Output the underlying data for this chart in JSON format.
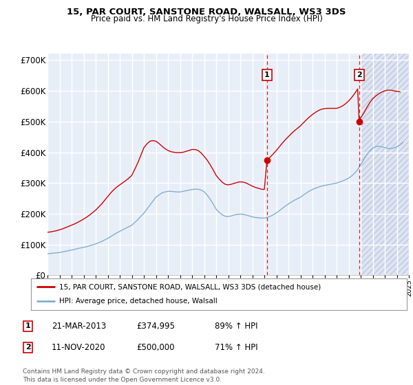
{
  "title": "15, PAR COURT, SANSTONE ROAD, WALSALL, WS3 3DS",
  "subtitle": "Price paid vs. HM Land Registry's House Price Index (HPI)",
  "ylim": [
    0,
    720000
  ],
  "yticks": [
    0,
    100000,
    200000,
    300000,
    400000,
    500000,
    600000,
    700000
  ],
  "ytick_labels": [
    "£0",
    "£100K",
    "£200K",
    "£300K",
    "£400K",
    "£500K",
    "£600K",
    "£700K"
  ],
  "background_color": "#ffffff",
  "plot_bg_color": "#e8eef8",
  "hatch_bg_color": "#dde5f5",
  "grid_color": "#ffffff",
  "red_color": "#cc0000",
  "blue_color": "#7fafd4",
  "purchase1_x": 2013.22,
  "purchase1_y": 374995,
  "purchase2_x": 2020.87,
  "purchase2_y": 500000,
  "legend_line1": "15, PAR COURT, SANSTONE ROAD, WALSALL, WS3 3DS (detached house)",
  "legend_line2": "HPI: Average price, detached house, Walsall",
  "table_row1": [
    "1",
    "21-MAR-2013",
    "£374,995",
    "89% ↑ HPI"
  ],
  "table_row2": [
    "2",
    "11-NOV-2020",
    "£500,000",
    "71% ↑ HPI"
  ],
  "footer": "Contains HM Land Registry data © Crown copyright and database right 2024.\nThis data is licensed under the Open Government Licence v3.0.",
  "hpi_x": [
    1995.0,
    1995.25,
    1995.5,
    1995.75,
    1996.0,
    1996.25,
    1996.5,
    1996.75,
    1997.0,
    1997.25,
    1997.5,
    1997.75,
    1998.0,
    1998.25,
    1998.5,
    1998.75,
    1999.0,
    1999.25,
    1999.5,
    1999.75,
    2000.0,
    2000.25,
    2000.5,
    2000.75,
    2001.0,
    2001.25,
    2001.5,
    2001.75,
    2002.0,
    2002.25,
    2002.5,
    2002.75,
    2003.0,
    2003.25,
    2003.5,
    2003.75,
    2004.0,
    2004.25,
    2004.5,
    2004.75,
    2005.0,
    2005.25,
    2005.5,
    2005.75,
    2006.0,
    2006.25,
    2006.5,
    2006.75,
    2007.0,
    2007.25,
    2007.5,
    2007.75,
    2008.0,
    2008.25,
    2008.5,
    2008.75,
    2009.0,
    2009.25,
    2009.5,
    2009.75,
    2010.0,
    2010.25,
    2010.5,
    2010.75,
    2011.0,
    2011.25,
    2011.5,
    2011.75,
    2012.0,
    2012.25,
    2012.5,
    2012.75,
    2013.0,
    2013.25,
    2013.5,
    2013.75,
    2014.0,
    2014.25,
    2014.5,
    2014.75,
    2015.0,
    2015.25,
    2015.5,
    2015.75,
    2016.0,
    2016.25,
    2016.5,
    2016.75,
    2017.0,
    2017.25,
    2017.5,
    2017.75,
    2018.0,
    2018.25,
    2018.5,
    2018.75,
    2019.0,
    2019.25,
    2019.5,
    2019.75,
    2020.0,
    2020.25,
    2020.5,
    2020.75,
    2021.0,
    2021.25,
    2021.5,
    2021.75,
    2022.0,
    2022.25,
    2022.5,
    2022.75,
    2023.0,
    2023.25,
    2023.5,
    2023.75,
    2024.0,
    2024.25,
    2024.5
  ],
  "hpi_y": [
    70000,
    71000,
    72000,
    73000,
    74000,
    76000,
    78000,
    80000,
    82000,
    84000,
    87000,
    89000,
    91000,
    93000,
    96000,
    99000,
    102000,
    106000,
    110000,
    115000,
    120000,
    126000,
    132000,
    138000,
    143000,
    148000,
    153000,
    158000,
    163000,
    172000,
    181000,
    192000,
    202000,
    215000,
    228000,
    241000,
    254000,
    261000,
    268000,
    271000,
    273000,
    273000,
    272000,
    271000,
    271000,
    273000,
    275000,
    277000,
    279000,
    280000,
    280000,
    277000,
    272000,
    261000,
    248000,
    232000,
    215000,
    205000,
    197000,
    192000,
    191000,
    193000,
    196000,
    198000,
    199000,
    198000,
    196000,
    193000,
    190000,
    188000,
    187000,
    186000,
    186000,
    188000,
    192000,
    197000,
    203000,
    210000,
    218000,
    225000,
    232000,
    238000,
    244000,
    249000,
    254000,
    261000,
    268000,
    274000,
    279000,
    283000,
    287000,
    290000,
    292000,
    294000,
    296000,
    298000,
    300000,
    303000,
    307000,
    311000,
    316000,
    323000,
    332000,
    344000,
    360000,
    376000,
    392000,
    405000,
    414000,
    418000,
    420000,
    418000,
    415000,
    413000,
    412000,
    414000,
    418000,
    424000,
    432000
  ],
  "red_x": [
    1995.0,
    1995.25,
    1995.5,
    1995.75,
    1996.0,
    1996.25,
    1996.5,
    1996.75,
    1997.0,
    1997.25,
    1997.5,
    1997.75,
    1998.0,
    1998.25,
    1998.5,
    1998.75,
    1999.0,
    1999.25,
    1999.5,
    1999.75,
    2000.0,
    2000.25,
    2000.5,
    2000.75,
    2001.0,
    2001.25,
    2001.5,
    2001.75,
    2002.0,
    2002.25,
    2002.5,
    2002.75,
    2003.0,
    2003.25,
    2003.5,
    2003.75,
    2004.0,
    2004.25,
    2004.5,
    2004.75,
    2005.0,
    2005.25,
    2005.5,
    2005.75,
    2006.0,
    2006.25,
    2006.5,
    2006.75,
    2007.0,
    2007.25,
    2007.5,
    2007.75,
    2008.0,
    2008.25,
    2008.5,
    2008.75,
    2009.0,
    2009.25,
    2009.5,
    2009.75,
    2010.0,
    2010.25,
    2010.5,
    2010.75,
    2011.0,
    2011.25,
    2011.5,
    2011.75,
    2012.0,
    2012.25,
    2012.5,
    2012.75,
    2013.0,
    2013.22,
    2013.5,
    2013.75,
    2014.0,
    2014.25,
    2014.5,
    2014.75,
    2015.0,
    2015.25,
    2015.5,
    2015.75,
    2016.0,
    2016.25,
    2016.5,
    2016.75,
    2017.0,
    2017.25,
    2017.5,
    2017.75,
    2018.0,
    2018.25,
    2018.5,
    2018.75,
    2019.0,
    2019.25,
    2019.5,
    2019.75,
    2020.0,
    2020.25,
    2020.5,
    2020.75,
    2020.87,
    2021.0,
    2021.25,
    2021.5,
    2021.75,
    2022.0,
    2022.25,
    2022.5,
    2022.75,
    2023.0,
    2023.25,
    2023.5,
    2023.75,
    2024.0,
    2024.25
  ],
  "red_y": [
    140000,
    141000,
    143000,
    145000,
    148000,
    151000,
    155000,
    159000,
    163000,
    167000,
    172000,
    177000,
    183000,
    189000,
    196000,
    204000,
    212000,
    222000,
    232000,
    244000,
    256000,
    268000,
    278000,
    287000,
    294000,
    301000,
    308000,
    316000,
    325000,
    345000,
    366000,
    390000,
    415000,
    427000,
    436000,
    438000,
    436000,
    429000,
    420000,
    412000,
    406000,
    402000,
    400000,
    399000,
    399000,
    400000,
    403000,
    406000,
    409000,
    409000,
    406000,
    398000,
    387000,
    375000,
    360000,
    343000,
    325000,
    313000,
    303000,
    296000,
    294000,
    296000,
    299000,
    302000,
    304000,
    303000,
    300000,
    295000,
    290000,
    286000,
    283000,
    280000,
    279000,
    374995,
    385000,
    395000,
    406000,
    418000,
    430000,
    441000,
    451000,
    461000,
    470000,
    478000,
    486000,
    496000,
    506000,
    515000,
    523000,
    530000,
    536000,
    540000,
    542000,
    543000,
    543000,
    543000,
    543000,
    546000,
    551000,
    558000,
    567000,
    578000,
    591000,
    606000,
    500000,
    512000,
    527000,
    545000,
    561000,
    574000,
    583000,
    590000,
    596000,
    600000,
    602000,
    602000,
    600000,
    598000,
    597000
  ],
  "vline1_x": 2013.22,
  "vline2_x": 2020.87,
  "hatch_start_x": 2021.0,
  "xmin": 1995.0,
  "xmax": 2025.0
}
